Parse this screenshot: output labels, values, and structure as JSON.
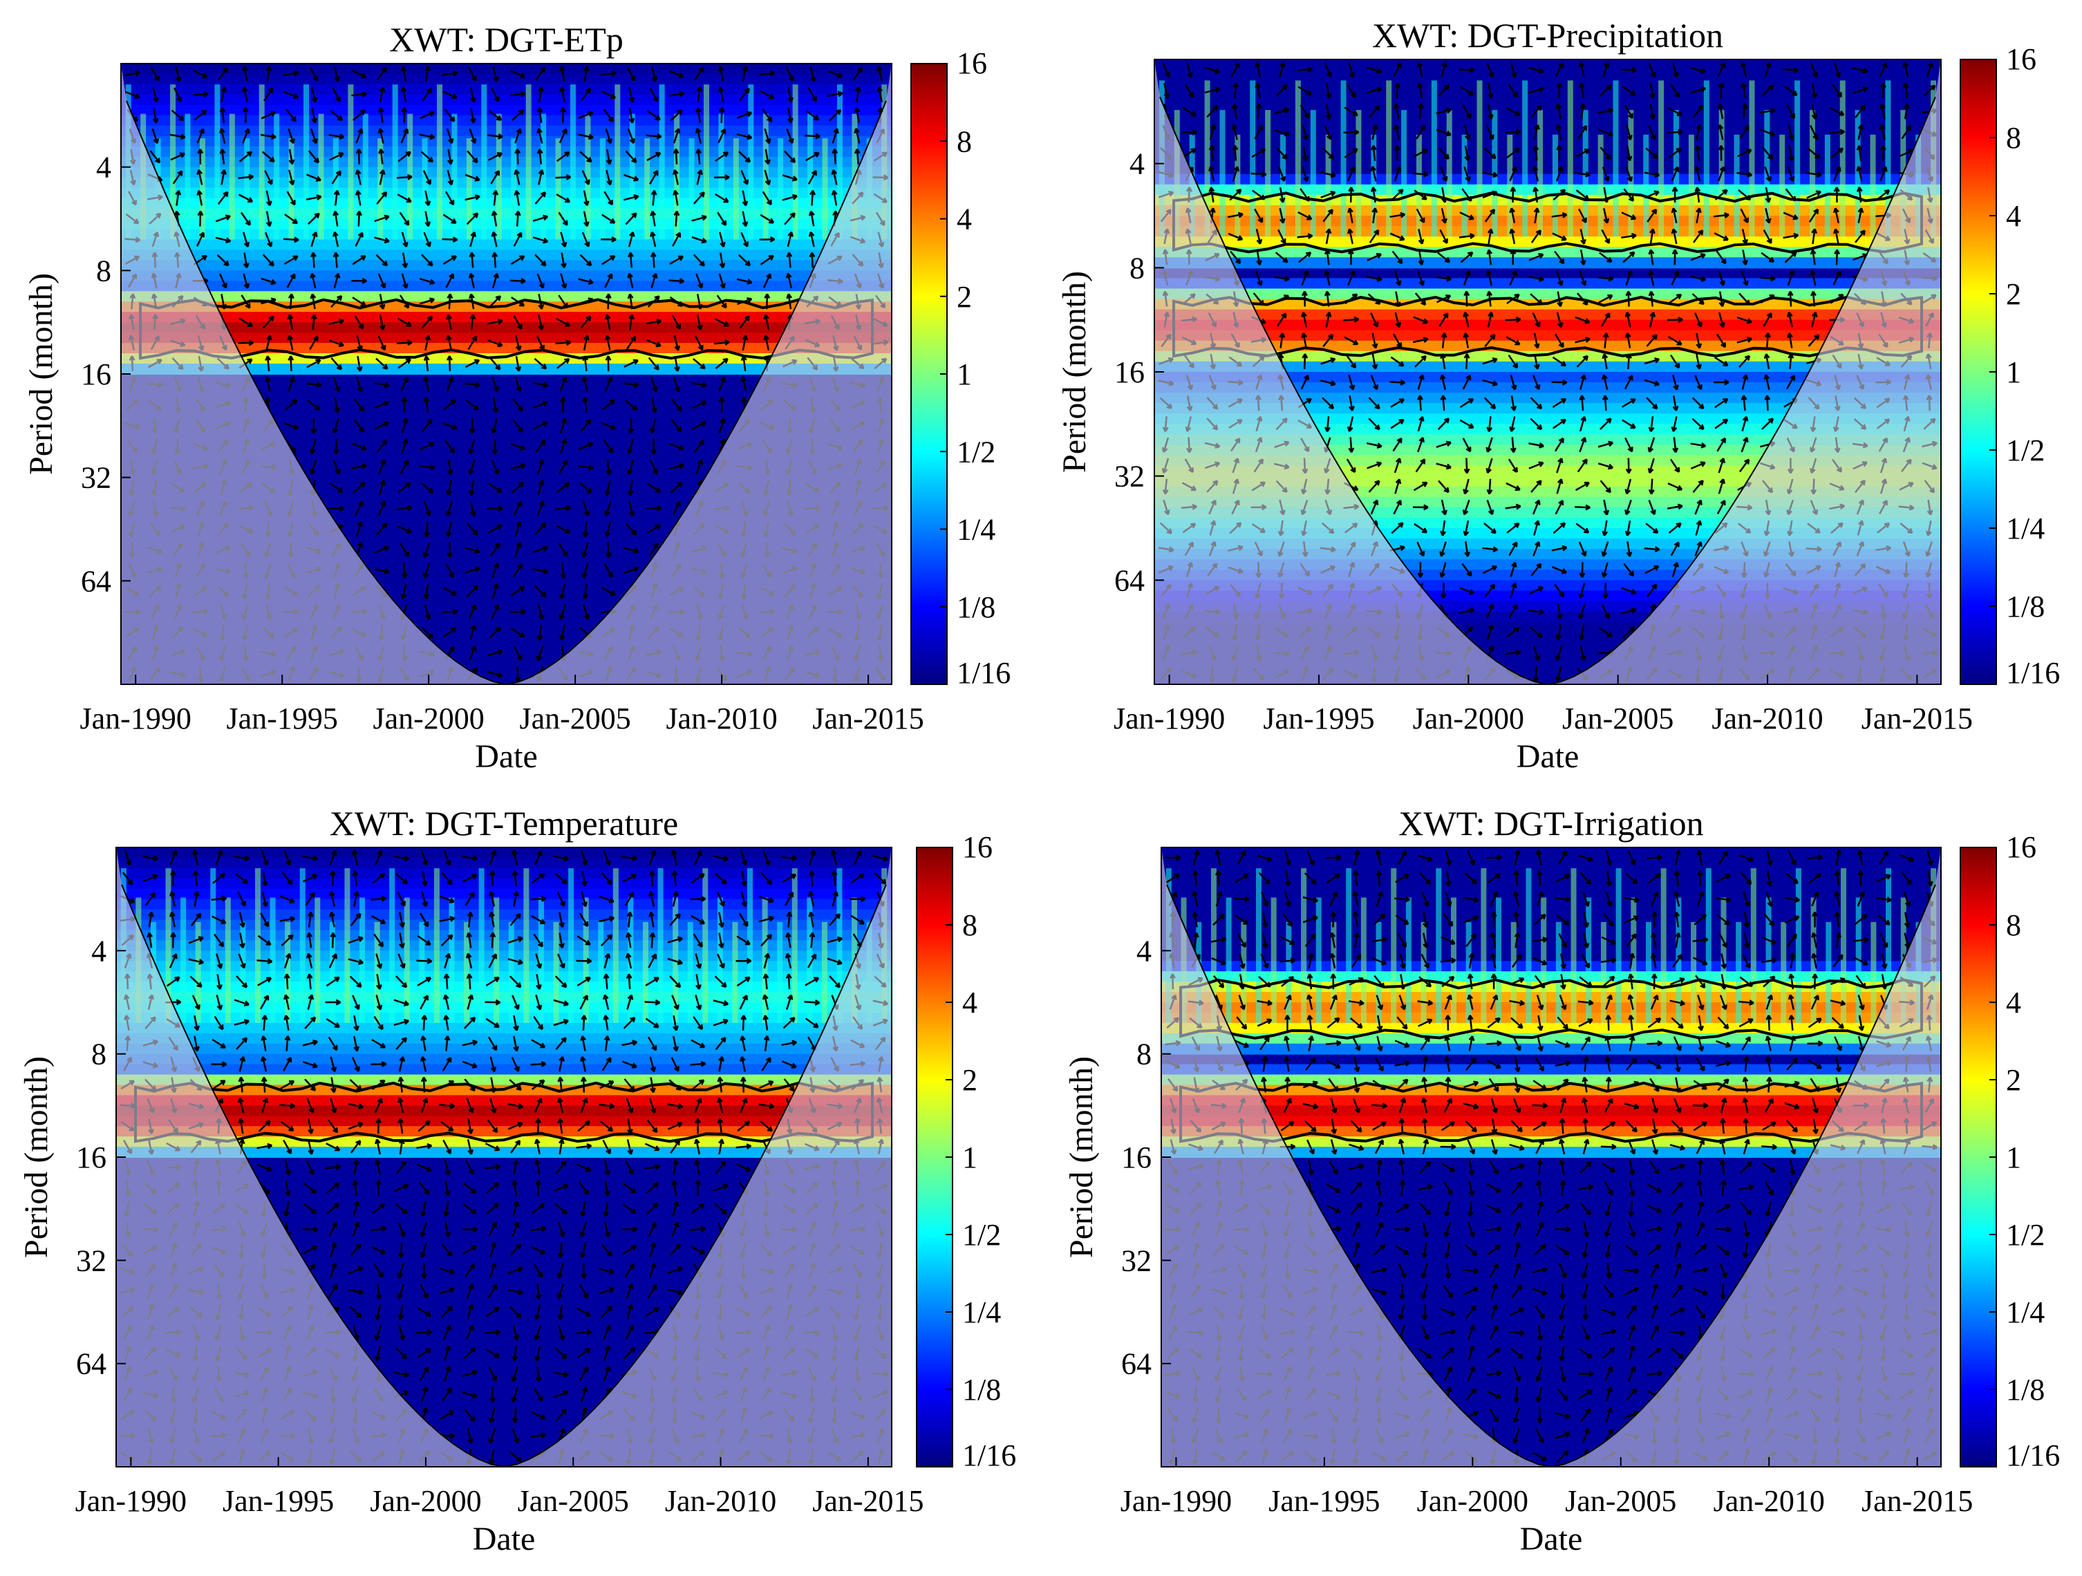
{
  "figure": {
    "colormap": [
      "#00007f",
      "#0000ff",
      "#007fff",
      "#00ffff",
      "#7fff7f",
      "#ffff00",
      "#ff7f00",
      "#ff0000",
      "#7f0000"
    ]
  },
  "chart_data": [
    {
      "type": "heatmap",
      "title": "XWT: DGT-ETp",
      "xlabel": "Date",
      "ylabel": "Period (month)",
      "x_ticks": [
        "Jan-1990",
        "Jan-1995",
        "Jan-2000",
        "Jan-2005",
        "Jan-2010",
        "Jan-2015"
      ],
      "y_ticks": [
        "4",
        "8",
        "16",
        "32",
        "64"
      ],
      "y_scale": "log2",
      "ylim": [
        2,
        128
      ],
      "xlim_years": [
        1989.5,
        2015.8
      ],
      "colorbar_ticks": [
        "16",
        "8",
        "4",
        "2",
        "1",
        "1/2",
        "1/4",
        "1/8",
        "1/16"
      ],
      "significant_bands": [
        {
          "period_min": 10,
          "period_max": 14,
          "power": 12
        }
      ],
      "features": [
        {
          "period": 5.5,
          "power": 0.6
        }
      ]
    },
    {
      "type": "heatmap",
      "title": "XWT: DGT-Precipitation",
      "xlabel": "Date",
      "ylabel": "Period (month)",
      "x_ticks": [
        "Jan-1990",
        "Jan-1995",
        "Jan-2000",
        "Jan-2005",
        "Jan-2010",
        "Jan-2015"
      ],
      "y_ticks": [
        "4",
        "8",
        "16",
        "32",
        "64"
      ],
      "y_scale": "log2",
      "ylim": [
        2,
        128
      ],
      "xlim_years": [
        1989.5,
        2015.8
      ],
      "colorbar_ticks": [
        "16",
        "8",
        "4",
        "2",
        "1",
        "1/2",
        "1/4",
        "1/8",
        "1/16"
      ],
      "significant_bands": [
        {
          "period_min": 10,
          "period_max": 14,
          "power": 8
        },
        {
          "period_min": 5,
          "period_max": 7,
          "power": 4
        }
      ],
      "features": [
        {
          "period": 32,
          "power": 1.5
        }
      ]
    },
    {
      "type": "heatmap",
      "title": "XWT: DGT-Temperature",
      "xlabel": "Date",
      "ylabel": "Period (month)",
      "x_ticks": [
        "Jan-1990",
        "Jan-1995",
        "Jan-2000",
        "Jan-2005",
        "Jan-2010",
        "Jan-2015"
      ],
      "y_ticks": [
        "4",
        "8",
        "16",
        "32",
        "64"
      ],
      "y_scale": "log2",
      "ylim": [
        2,
        128
      ],
      "xlim_years": [
        1989.5,
        2015.8
      ],
      "colorbar_ticks": [
        "16",
        "8",
        "4",
        "2",
        "1",
        "1/2",
        "1/4",
        "1/8",
        "1/16"
      ],
      "significant_bands": [
        {
          "period_min": 10,
          "period_max": 14,
          "power": 12
        }
      ],
      "features": [
        {
          "period": 5.5,
          "power": 0.6
        }
      ]
    },
    {
      "type": "heatmap",
      "title": "XWT: DGT-Irrigation",
      "xlabel": "Date",
      "ylabel": "Period (month)",
      "x_ticks": [
        "Jan-1990",
        "Jan-1995",
        "Jan-2000",
        "Jan-2005",
        "Jan-2010",
        "Jan-2015"
      ],
      "y_ticks": [
        "4",
        "8",
        "16",
        "32",
        "64"
      ],
      "y_scale": "log2",
      "ylim": [
        2,
        128
      ],
      "xlim_years": [
        1989.5,
        2015.8
      ],
      "colorbar_ticks": [
        "16",
        "8",
        "4",
        "2",
        "1",
        "1/2",
        "1/4",
        "1/8",
        "1/16"
      ],
      "significant_bands": [
        {
          "period_min": 10,
          "period_max": 14,
          "power": 10
        },
        {
          "period_min": 5,
          "period_max": 7,
          "power": 4
        }
      ],
      "features": []
    }
  ]
}
